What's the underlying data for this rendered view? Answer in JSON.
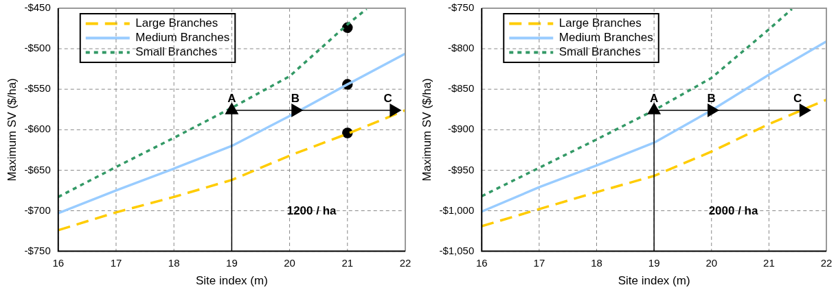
{
  "chart_data": [
    {
      "type": "line",
      "xlabel": "Site index (m)",
      "ylabel": "Maximum SV ($/ha)",
      "x": [
        16,
        17,
        18,
        19,
        20,
        21,
        22
      ],
      "series": [
        {
          "name": "Large Branches",
          "color": "#ffcc00",
          "line_style": "dashed",
          "values": [
            -724,
            -702,
            -683,
            -662,
            -632,
            -605,
            -576
          ]
        },
        {
          "name": "Medium Branches",
          "color": "#99ccff",
          "line_style": "solid",
          "values": [
            -703,
            -675,
            -648,
            -620,
            -583,
            -544,
            -506
          ]
        },
        {
          "name": "Small Branches",
          "color": "#339966",
          "line_style": "dotted",
          "x": [
            16,
            17,
            18,
            19,
            20,
            21,
            21.33
          ],
          "values": [
            -683,
            -646,
            -610,
            -573,
            -534,
            -470,
            -451
          ]
        },
        {
          "type": "scatter",
          "color": "#000000",
          "marker": "circle",
          "x": [
            21,
            21,
            21
          ],
          "values": [
            -474,
            -544,
            -604
          ]
        },
        {
          "type": "line",
          "color": "#000000",
          "marker": "triangle",
          "line_style": "solid",
          "x": [
            19,
            19
          ],
          "values": [
            -750,
            -576
          ]
        },
        {
          "type": "line",
          "color": "#000000",
          "marker": "triangle",
          "line_style": "solid",
          "x": [
            19,
            20.1,
            21.8
          ],
          "values": [
            -576,
            -576,
            -576
          ]
        }
      ],
      "annotations": [
        {
          "text": "A",
          "x": 19,
          "y": -566
        },
        {
          "text": "B",
          "x": 20.1,
          "y": -566
        },
        {
          "text": "C",
          "x": 21.7,
          "y": -566
        },
        "1200 / ha"
      ],
      "xlim": [
        16,
        22
      ],
      "xticks": [
        16,
        17,
        18,
        19,
        20,
        21,
        22
      ],
      "ylim": [
        -750,
        -450
      ],
      "yticks": [
        {
          "value": -750,
          "label": "-$750"
        },
        {
          "value": -700,
          "label": "-$700"
        },
        {
          "value": -650,
          "label": "-$650"
        },
        {
          "value": -600,
          "label": "-$600"
        },
        {
          "value": -550,
          "label": "-$550"
        },
        {
          "value": -500,
          "label": "-$500"
        },
        {
          "value": -450,
          "label": "-$450"
        }
      ],
      "grid": true,
      "legend": "top left",
      "marker": "none"
    },
    {
      "type": "line",
      "xlabel": "Site index (m)",
      "ylabel": "Maximum SV ($/ha)",
      "x": [
        16,
        17,
        18,
        19,
        20,
        21,
        22
      ],
      "series": [
        {
          "name": "Large Branches",
          "color": "#ffcc00",
          "line_style": "dashed",
          "values": [
            -1019,
            -998,
            -977,
            -957,
            -927,
            -893,
            -863
          ]
        },
        {
          "name": "Medium Branches",
          "color": "#99ccff",
          "line_style": "solid",
          "values": [
            -1001,
            -971,
            -944,
            -916,
            -876,
            -832,
            -791
          ]
        },
        {
          "name": "Small Branches",
          "color": "#339966",
          "line_style": "dotted",
          "x": [
            16,
            17,
            18,
            19,
            20,
            21,
            21.4
          ],
          "values": [
            -982,
            -947,
            -912,
            -876,
            -836,
            -776,
            -751
          ]
        },
        {
          "type": "line",
          "color": "#000000",
          "marker": "triangle",
          "line_style": "solid",
          "x": [
            19,
            19
          ],
          "values": [
            -1050,
            -876
          ]
        },
        {
          "type": "line",
          "color": "#000000",
          "marker": "triangle",
          "line_style": "solid",
          "x": [
            19,
            20,
            21.6
          ],
          "values": [
            -876,
            -876,
            -876
          ]
        }
      ],
      "annotations": [
        {
          "text": "A",
          "x": 19,
          "y": -866
        },
        {
          "text": "B",
          "x": 20,
          "y": -866
        },
        {
          "text": "C",
          "x": 21.5,
          "y": -866
        },
        "2000 / ha"
      ],
      "xlim": [
        16,
        22
      ],
      "xticks": [
        16,
        17,
        18,
        19,
        20,
        21,
        22
      ],
      "ylim": [
        -1050,
        -750
      ],
      "yticks": [
        {
          "value": -1050,
          "label": "-$1,050"
        },
        {
          "value": -1000,
          "label": "-$1,000"
        },
        {
          "value": -950,
          "label": "-$950"
        },
        {
          "value": -900,
          "label": "-$900"
        },
        {
          "value": -850,
          "label": "-$850"
        },
        {
          "value": -800,
          "label": "-$800"
        },
        {
          "value": -750,
          "label": "-$750"
        }
      ],
      "grid": true,
      "legend": "top left",
      "marker": "none"
    }
  ]
}
